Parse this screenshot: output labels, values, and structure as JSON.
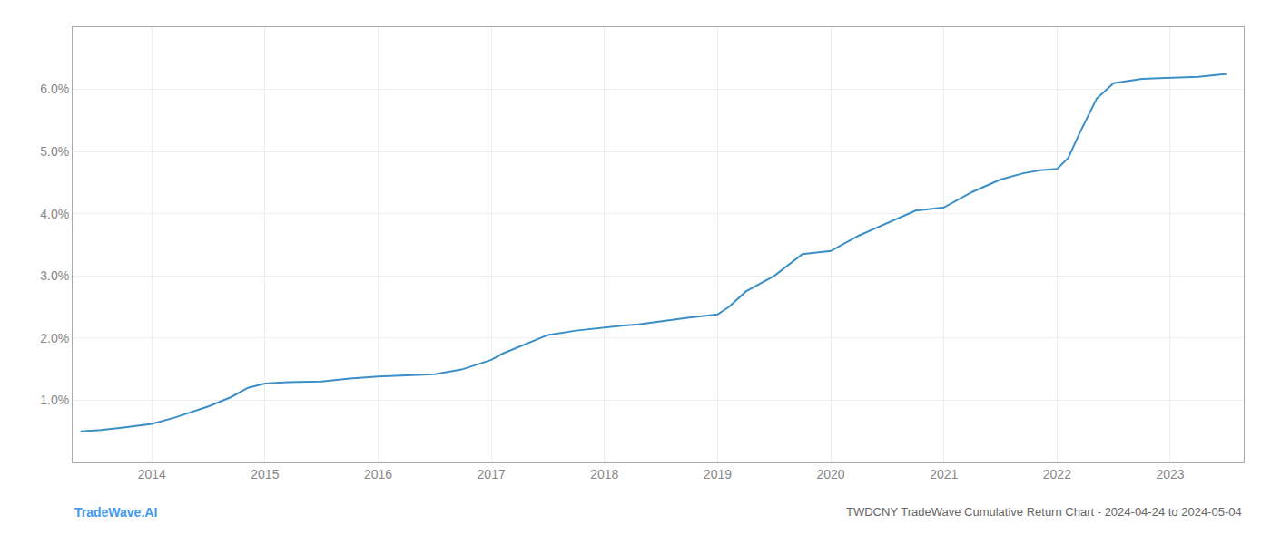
{
  "chart_data": {
    "type": "line",
    "title": "TWDCNY TradeWave Cumulative Return Chart - 2024-04-24 to 2024-05-04",
    "annotations": [
      "TradeWave.AI"
    ],
    "x": [
      2013.37,
      2013.55,
      2013.75,
      2014.0,
      2014.2,
      2014.5,
      2014.7,
      2014.85,
      2015.0,
      2015.1,
      2015.2,
      2015.5,
      2015.75,
      2016.0,
      2016.25,
      2016.5,
      2016.75,
      2017.0,
      2017.1,
      2017.3,
      2017.5,
      2017.75,
      2017.9,
      2018.0,
      2018.15,
      2018.3,
      2018.5,
      2018.6,
      2018.75,
      2019.0,
      2019.1,
      2019.25,
      2019.5,
      2019.75,
      2020.0,
      2020.25,
      2020.5,
      2020.75,
      2021.0,
      2021.1,
      2021.25,
      2021.5,
      2021.7,
      2021.85,
      2022.0,
      2022.1,
      2022.2,
      2022.35,
      2022.5,
      2022.75,
      2023.0,
      2023.25,
      2023.5
    ],
    "values": [
      0.5,
      0.52,
      0.56,
      0.62,
      0.72,
      0.9,
      1.05,
      1.2,
      1.27,
      1.28,
      1.29,
      1.3,
      1.35,
      1.38,
      1.4,
      1.42,
      1.5,
      1.65,
      1.75,
      1.9,
      2.05,
      2.12,
      2.15,
      2.18,
      2.2,
      2.22,
      2.27,
      2.3,
      2.33,
      2.38,
      2.5,
      2.75,
      3.0,
      3.35,
      3.4,
      3.65,
      3.85,
      4.05,
      4.1,
      4.2,
      4.35,
      4.55,
      4.65,
      4.7,
      4.72,
      4.9,
      5.3,
      5.85,
      6.1,
      6.17,
      6.18,
      6.2,
      6.25
    ],
    "color": "#3a8fc7",
    "xlim": [
      2013.3,
      2023.65
    ],
    "xticks": [
      2014,
      2015,
      2016,
      2017,
      2018,
      2019,
      2020,
      2021,
      2022,
      2023
    ],
    "ylim": [
      0.0,
      7.0
    ],
    "yticks": [
      {
        "value": 1.0,
        "label": "1.0%"
      },
      {
        "value": 2.0,
        "label": "2.0%"
      },
      {
        "value": 3.0,
        "label": "3.0%"
      },
      {
        "value": 4.0,
        "label": "4.0%"
      },
      {
        "value": 5.0,
        "label": "5.0%"
      },
      {
        "value": 6.0,
        "label": "6.0%"
      }
    ],
    "grid": true
  }
}
